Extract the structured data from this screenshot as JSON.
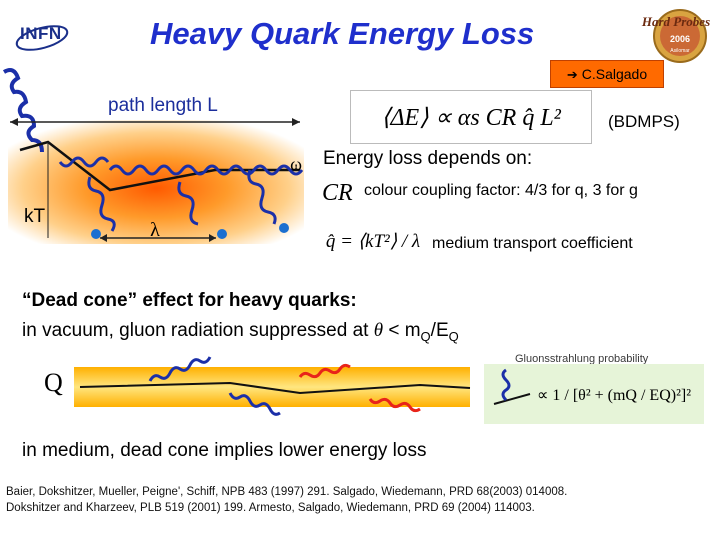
{
  "header": {
    "title": "Heavy Quark Energy Loss",
    "infn_logo": "INFN",
    "conference_logo": {
      "line1": "Hard Probes",
      "line2": "2006",
      "line3": "Asilomar"
    },
    "speaker_ref": "C.Salgado"
  },
  "diagram_top": {
    "path_length_label": "path length L",
    "omega_label": "ω",
    "kt_label": "kT",
    "lambda_label": "λ"
  },
  "formulas": {
    "main": "⟨ΔE⟩ ∝ αs CR q̂ L²",
    "bdmps": "(BDMPS)",
    "cr_symbol": "CR",
    "qhat_formula": "q̂ = ⟨kT²⟩ / λ"
  },
  "text": {
    "energy_loss_depends": "Energy loss depends on:",
    "colour_coupling": "colour coupling factor: 4/3 for q, 3 for g",
    "medium_transport": "medium transport coefficient",
    "dead_cone_heading": "“Dead cone” effect for heavy quarks:",
    "vacuum_prefix": "in vacuum, gluon radiation suppressed at ",
    "theta": "θ",
    "lt": " < m",
    "sub_q1": "Q",
    "slash_e": "/E",
    "sub_q2": "Q",
    "in_medium": "in medium, dead cone implies lower energy loss"
  },
  "diagram_bottom": {
    "quark_label": "Q",
    "gluon_prob_label": "Gluonsstrahlung probability",
    "prob_formula": "∝ 1 / [θ² + (mQ / EQ)²]²"
  },
  "references": {
    "line1": "Baier, Dokshitzer, Mueller, Peigne', Schiff, NPB 483 (1997) 291. Salgado, Wiedemann, PRD 68(2003) 014008.",
    "line2": "Dokshitzer and Kharzeev, PLB 519 (2001) 199. Armesto, Salgado, Wiedemann, PRD 69 (2004) 114003."
  },
  "colors": {
    "title": "#1f2fcc",
    "accent_orange": "#ff6a00",
    "gluon_blue": "#1b2fa8",
    "medium_red": "#e8241a",
    "prob_bg": "#e6f4d8"
  }
}
